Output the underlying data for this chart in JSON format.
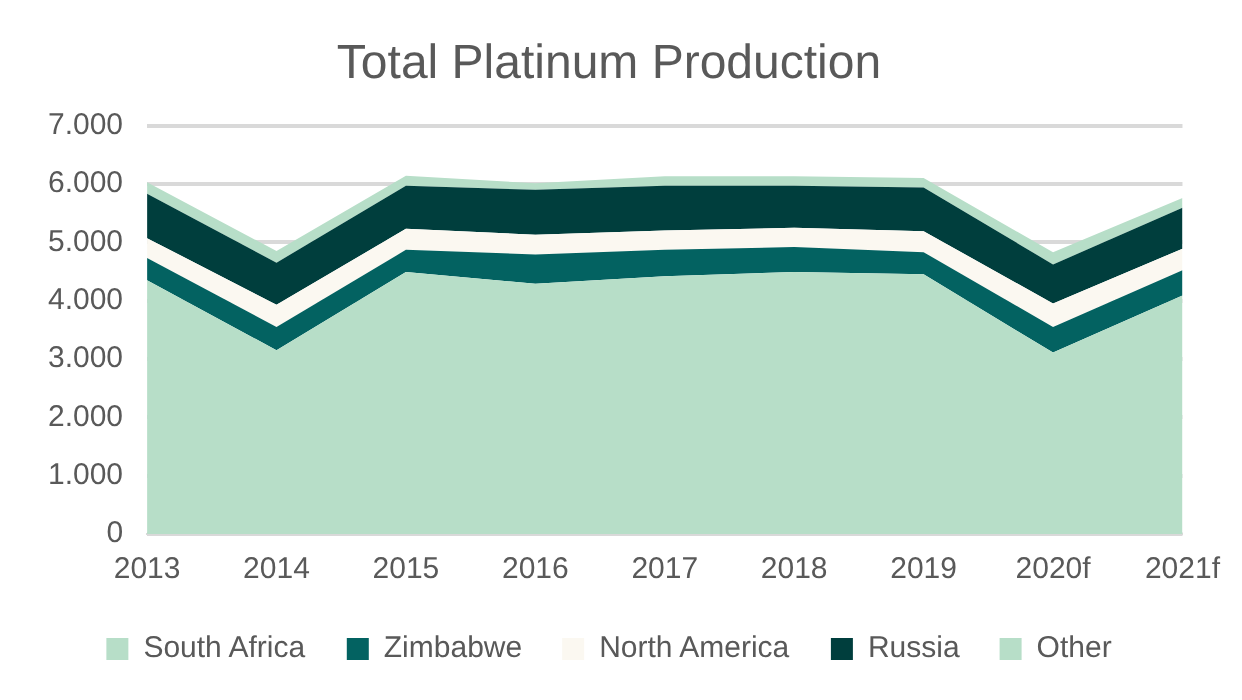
{
  "chart_data": {
    "type": "area",
    "title": "Total Platinum Production",
    "stacked": true,
    "categories": [
      "2013",
      "2014",
      "2015",
      "2016",
      "2017",
      "2018",
      "2019",
      "2020f",
      "2021f"
    ],
    "series": [
      {
        "name": "South Africa",
        "color": "#b7dec8",
        "values": [
          4350,
          3150,
          4490,
          4290,
          4420,
          4490,
          4450,
          3110,
          4090
        ]
      },
      {
        "name": "Zimbabwe",
        "color": "#036261",
        "values": [
          380,
          400,
          380,
          500,
          450,
          430,
          380,
          440,
          430
        ]
      },
      {
        "name": "North America",
        "color": "#fbf8f1",
        "values": [
          340,
          380,
          360,
          340,
          330,
          330,
          360,
          400,
          370
        ]
      },
      {
        "name": "Russia",
        "color": "#003e3d",
        "values": [
          760,
          720,
          740,
          770,
          770,
          720,
          750,
          670,
          700
        ]
      },
      {
        "name": "Other",
        "color": "#b7dec8",
        "values": [
          200,
          200,
          170,
          110,
          160,
          160,
          160,
          210,
          170
        ]
      }
    ],
    "ylim": [
      0,
      7000
    ],
    "yticks": [
      0,
      {
        "value": 1000,
        "label": "1.000"
      },
      {
        "value": 2000,
        "label": "2.000"
      },
      {
        "value": 3000,
        "label": "3.000"
      },
      {
        "value": 4000,
        "label": "4.000"
      },
      {
        "value": 5000,
        "label": "5.000"
      },
      {
        "value": 6000,
        "label": "6.000"
      },
      {
        "value": 7000,
        "label": "7.000"
      }
    ],
    "grid": "y",
    "legend": "bottom"
  }
}
